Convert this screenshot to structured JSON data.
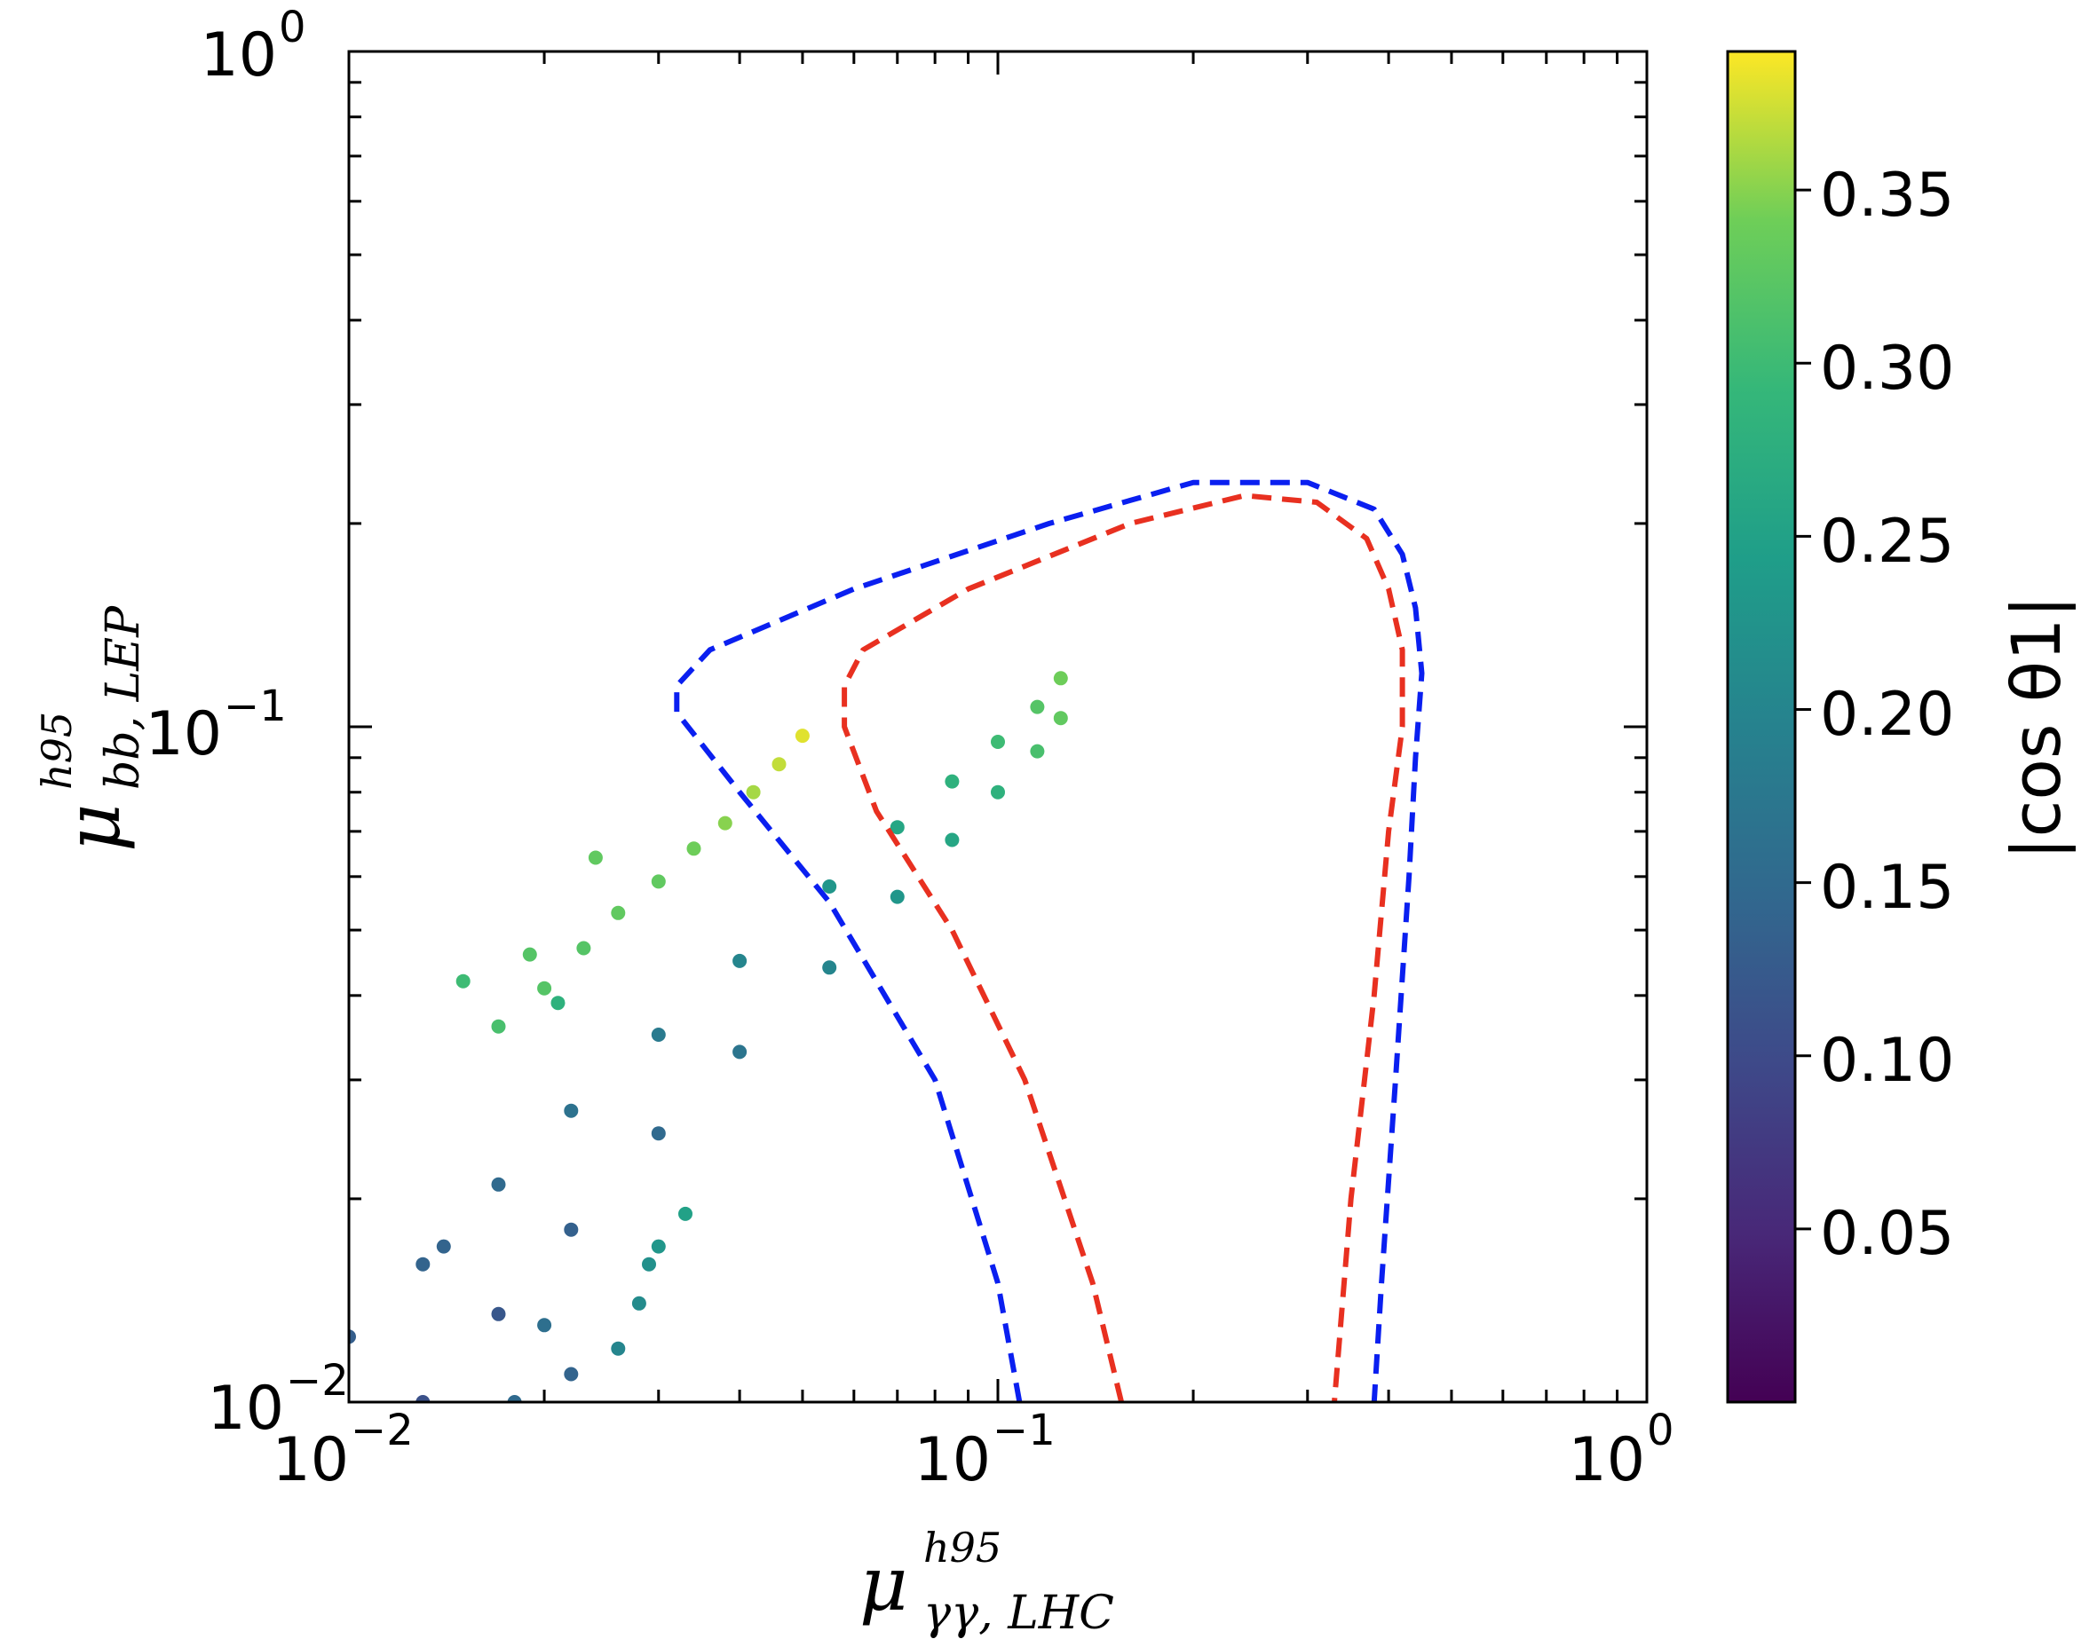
{
  "chart_data": {
    "type": "scatter",
    "title": "",
    "xscale": "log",
    "yscale": "log",
    "xlim": [
      0.01,
      1
    ],
    "ylim": [
      0.01,
      1
    ],
    "grid": false,
    "xlabel": {
      "symbol": "μ",
      "superscript": "h95",
      "subscript": "γγ, LHC"
    },
    "ylabel": {
      "symbol": "μ",
      "superscript": "h95",
      "subscript": "bb, LEP"
    },
    "x_tick_labels": [
      {
        "value": 0.01,
        "base": "10",
        "exp": "−2"
      },
      {
        "value": 0.1,
        "base": "10",
        "exp": "−1"
      },
      {
        "value": 1,
        "base": "10",
        "exp": "0"
      }
    ],
    "y_tick_labels": [
      {
        "value": 0.01,
        "base": "10",
        "exp": "−2"
      },
      {
        "value": 0.1,
        "base": "10",
        "exp": "−1"
      },
      {
        "value": 1,
        "base": "10",
        "exp": "0"
      }
    ],
    "colorbar": {
      "label": "|cos θ1|",
      "colormap": "viridis",
      "range": [
        0.0,
        0.39
      ],
      "ticks": [
        "0.05",
        "0.10",
        "0.15",
        "0.20",
        "0.25",
        "0.30",
        "0.35"
      ],
      "tick_values": [
        0.05,
        0.1,
        0.15,
        0.2,
        0.25,
        0.3,
        0.35
      ]
    },
    "contours": [
      {
        "name": "blue-dashed-contour",
        "color": "#0a1ff0",
        "style": "dashed",
        "points": [
          [
            0.108,
            0.01
          ],
          [
            0.1,
            0.015
          ],
          [
            0.08,
            0.03
          ],
          [
            0.055,
            0.055
          ],
          [
            0.04,
            0.08
          ],
          [
            0.032,
            0.105
          ],
          [
            0.032,
            0.115
          ],
          [
            0.036,
            0.13
          ],
          [
            0.06,
            0.16
          ],
          [
            0.12,
            0.2
          ],
          [
            0.2,
            0.23
          ],
          [
            0.3,
            0.23
          ],
          [
            0.38,
            0.21
          ],
          [
            0.42,
            0.18
          ],
          [
            0.44,
            0.15
          ],
          [
            0.45,
            0.12
          ],
          [
            0.44,
            0.09
          ],
          [
            0.43,
            0.06
          ],
          [
            0.41,
            0.03
          ],
          [
            0.39,
            0.015
          ],
          [
            0.38,
            0.01
          ]
        ]
      },
      {
        "name": "red-dashed-contour",
        "color": "#e83020",
        "style": "dashed",
        "points": [
          [
            0.155,
            0.01
          ],
          [
            0.14,
            0.015
          ],
          [
            0.11,
            0.03
          ],
          [
            0.085,
            0.05
          ],
          [
            0.065,
            0.075
          ],
          [
            0.058,
            0.1
          ],
          [
            0.058,
            0.115
          ],
          [
            0.062,
            0.13
          ],
          [
            0.09,
            0.16
          ],
          [
            0.16,
            0.2
          ],
          [
            0.24,
            0.22
          ],
          [
            0.31,
            0.215
          ],
          [
            0.37,
            0.19
          ],
          [
            0.4,
            0.16
          ],
          [
            0.42,
            0.13
          ],
          [
            0.42,
            0.1
          ],
          [
            0.4,
            0.07
          ],
          [
            0.38,
            0.04
          ],
          [
            0.35,
            0.02
          ],
          [
            0.33,
            0.01
          ]
        ]
      }
    ],
    "series": [
      {
        "name": "upper-band",
        "x": [
          0.01,
          0.013,
          0.017,
          0.022,
          0.03,
          0.04,
          0.055,
          0.07,
          0.085,
          0.1,
          0.115,
          0.125
        ],
        "y": [
          0.0125,
          0.016,
          0.021,
          0.027,
          0.035,
          0.045,
          0.058,
          0.071,
          0.083,
          0.095,
          0.107,
          0.118
        ],
        "cos": [
          0.13,
          0.14,
          0.15,
          0.165,
          0.18,
          0.2,
          0.23,
          0.26,
          0.28,
          0.3,
          0.32,
          0.34
        ]
      },
      {
        "name": "lower-band",
        "x": [
          0.013,
          0.017,
          0.022,
          0.03,
          0.04,
          0.055,
          0.07,
          0.085,
          0.1,
          0.115,
          0.125
        ],
        "y": [
          0.01,
          0.0135,
          0.018,
          0.025,
          0.033,
          0.044,
          0.056,
          0.068,
          0.08,
          0.092,
          0.103
        ],
        "cos": [
          0.11,
          0.12,
          0.135,
          0.15,
          0.17,
          0.2,
          0.23,
          0.26,
          0.28,
          0.31,
          0.33
        ]
      },
      {
        "name": "high-cos-branch",
        "x": [
          0.017,
          0.02,
          0.023,
          0.026,
          0.03,
          0.034,
          0.038,
          0.042,
          0.046,
          0.05
        ],
        "y": [
          0.036,
          0.041,
          0.047,
          0.053,
          0.059,
          0.066,
          0.072,
          0.08,
          0.088,
          0.097
        ],
        "cos": [
          0.31,
          0.32,
          0.32,
          0.33,
          0.33,
          0.34,
          0.35,
          0.36,
          0.37,
          0.38
        ]
      },
      {
        "name": "isolated-points",
        "x": [
          0.015,
          0.019,
          0.021,
          0.024,
          0.026,
          0.028,
          0.029,
          0.03,
          0.033,
          0.02,
          0.022,
          0.018,
          0.014
        ],
        "y": [
          0.042,
          0.046,
          0.039,
          0.064,
          0.012,
          0.014,
          0.016,
          0.017,
          0.019,
          0.013,
          0.011,
          0.01,
          0.017
        ],
        "cos": [
          0.3,
          0.32,
          0.28,
          0.33,
          0.2,
          0.21,
          0.22,
          0.23,
          0.25,
          0.16,
          0.14,
          0.15,
          0.14
        ]
      }
    ]
  }
}
